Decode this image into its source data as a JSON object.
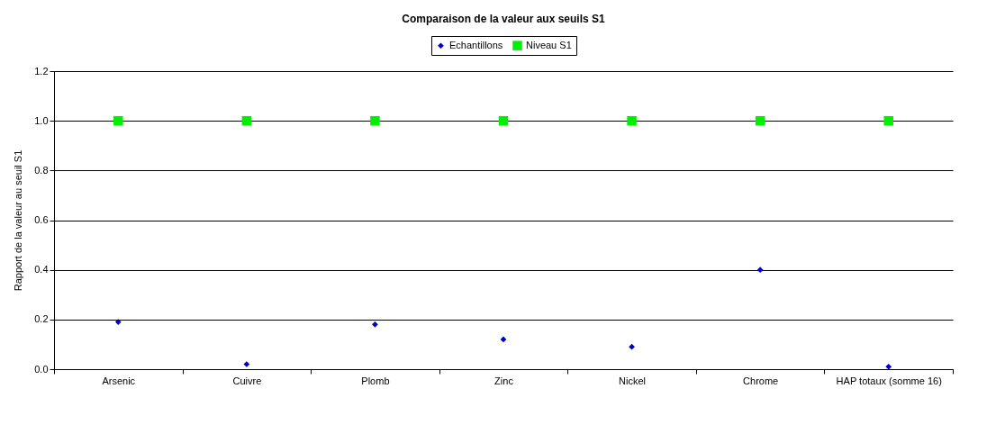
{
  "chart_data": {
    "type": "scatter",
    "title": "Comparaison de la valeur aux seuils S1",
    "ylabel": "Rapport  de la valeur  au seuil S1",
    "categories": [
      "Arsenic",
      "Cuivre",
      "Plomb",
      "Zinc",
      "Nickel",
      "Chrome",
      "HAP totaux (somme 16)"
    ],
    "series": [
      {
        "name": "Echantillons",
        "color": "#0000cc",
        "marker": "diamond",
        "values": [
          0.19,
          0.02,
          0.18,
          0.12,
          0.09,
          0.4,
          0.01
        ]
      },
      {
        "name": "Niveau S1",
        "color": "#00ee00",
        "marker": "square",
        "values": [
          1,
          1,
          1,
          1,
          1,
          1,
          1
        ]
      }
    ],
    "ylim": [
      0,
      1.2
    ],
    "yticks": [
      {
        "value": 0,
        "label": "0.0"
      },
      {
        "value": 0.2,
        "label": "0.2"
      },
      {
        "value": 0.4,
        "label": "0.4"
      },
      {
        "value": 0.6,
        "label": "0.6"
      },
      {
        "value": 0.8,
        "label": "0.8"
      },
      {
        "value": 1,
        "label": "1.0"
      },
      {
        "value": 1.2,
        "label": "1.2"
      }
    ],
    "grid": "y",
    "legend": "top"
  }
}
